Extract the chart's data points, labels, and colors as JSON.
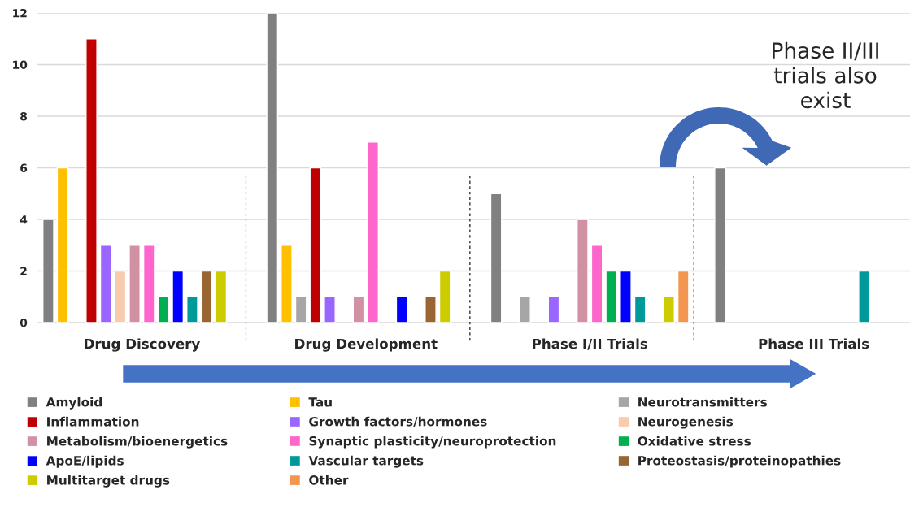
{
  "chart_data": {
    "type": "bar",
    "categories": [
      "Drug Discovery",
      "Drug Development",
      "Phase I/II Trials",
      "Phase III Trials"
    ],
    "series": [
      {
        "name": "Amyloid",
        "color": "#808080",
        "values": [
          4,
          12,
          5,
          6
        ]
      },
      {
        "name": "Tau",
        "color": "#ffc000",
        "values": [
          6,
          3,
          null,
          null
        ]
      },
      {
        "name": "Neurotransmitters",
        "color": "#a6a6a6",
        "values": [
          null,
          1,
          1,
          null
        ]
      },
      {
        "name": "Inflammation",
        "color": "#c00000",
        "values": [
          11,
          6,
          null,
          null
        ]
      },
      {
        "name": "Growth factors/hormones",
        "color": "#9966ff",
        "values": [
          3,
          1,
          1,
          null
        ]
      },
      {
        "name": "Neurogenesis",
        "color": "#f8cbad",
        "values": [
          2,
          null,
          null,
          null
        ]
      },
      {
        "name": "Metabolism/bioenergetics",
        "color": "#d291a3",
        "values": [
          3,
          1,
          4,
          null
        ]
      },
      {
        "name": "Synaptic plasticity/neuroprotection",
        "color": "#ff66cc",
        "values": [
          3,
          7,
          3,
          null
        ]
      },
      {
        "name": "Oxidative stress",
        "color": "#00b050",
        "values": [
          1,
          null,
          2,
          null
        ]
      },
      {
        "name": "ApoE/lipids",
        "color": "#0000ff",
        "values": [
          2,
          1,
          2,
          null
        ]
      },
      {
        "name": "Vascular targets",
        "color": "#009999",
        "values": [
          1,
          null,
          1,
          2
        ]
      },
      {
        "name": "Proteostasis/proteinopathies",
        "color": "#996633",
        "values": [
          2,
          1,
          null,
          null
        ]
      },
      {
        "name": "Multitarget drugs",
        "color": "#cccc00",
        "values": [
          2,
          2,
          1,
          null
        ]
      },
      {
        "name": "Other",
        "color": "#f4964f",
        "values": [
          null,
          null,
          2,
          null
        ]
      }
    ],
    "ylim": [
      0,
      12
    ],
    "yticks": [
      0,
      2,
      4,
      6,
      8,
      10,
      12
    ],
    "grid": "y",
    "legend": "bottom",
    "annotations": [
      "Phase II/III\ntrials also\nexist"
    ]
  }
}
